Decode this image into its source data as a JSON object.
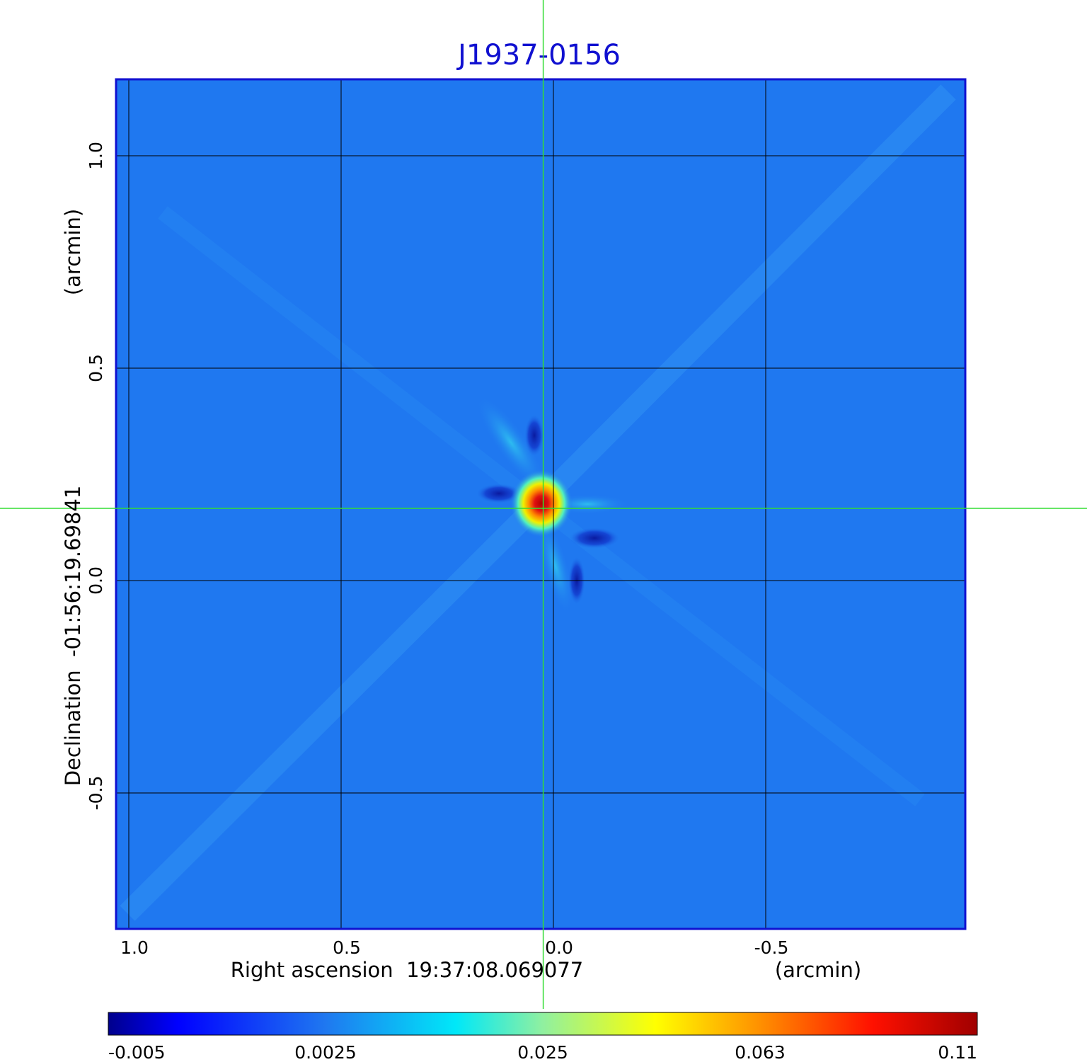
{
  "chart_data": {
    "type": "heatmap",
    "title": "J1937-0156",
    "xlabel": "Right ascension  19:37:08.069077",
    "xlabel_unit": "(arcmin)",
    "ylabel": "Declination  -01:56:19.69841",
    "ylabel_unit": "(arcmin)",
    "x_ticks": [
      1.0,
      0.5,
      0.0,
      -0.5
    ],
    "x_tick_labels": [
      "1.0",
      "0.5",
      "0.0",
      "-0.5"
    ],
    "y_ticks": [
      1.0,
      0.5,
      0.0,
      -0.5
    ],
    "y_tick_labels": [
      "1.0",
      "0.5",
      "0.0",
      "-0.5"
    ],
    "xlim": [
      1.03,
      -0.97
    ],
    "ylim": [
      -0.82,
      1.18
    ],
    "grid": true,
    "crosshair": {
      "x": 0.024,
      "y": 0.17,
      "color": "#33dd33"
    },
    "source_peak": {
      "x": 0.02,
      "y": 0.18,
      "value": 0.11
    },
    "colorbar": {
      "position": "bottom",
      "tick_labels": [
        "-0.005",
        "0.0025",
        "0.025",
        "0.063",
        "0.11"
      ],
      "min": -0.005,
      "max": 0.11,
      "colormap": "jet"
    },
    "colors": {
      "background": "#1f78f0",
      "frame": "#1010d0",
      "grid": "#000000",
      "title": "#1010d0"
    }
  }
}
